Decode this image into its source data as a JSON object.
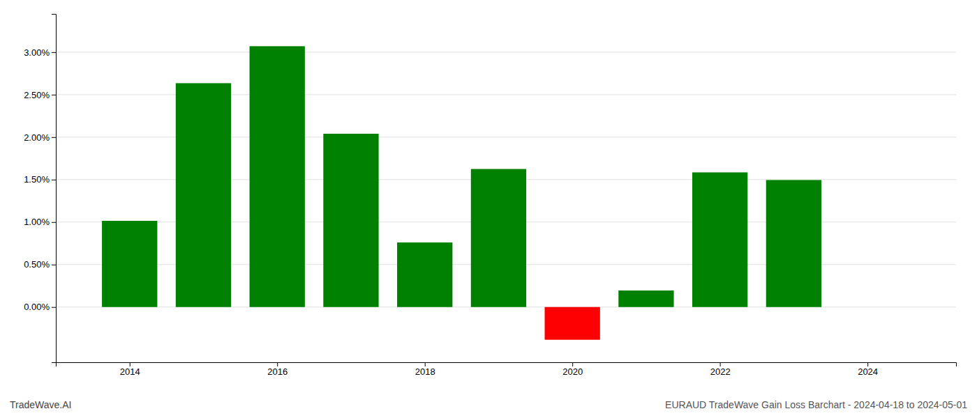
{
  "chart_data": {
    "type": "bar",
    "title": "EURAUD TradeWave Gain Loss Barchart - 2024-04-18 to 2024-05-01",
    "annotations": [
      "TradeWave.AI"
    ],
    "x": [
      2014,
      2015,
      2016,
      2017,
      2018,
      2019,
      2020,
      2021,
      2022,
      2023
    ],
    "values": [
      0.01015,
      0.02635,
      0.0307,
      0.0204,
      0.0076,
      0.01625,
      -0.00385,
      0.00195,
      0.01585,
      0.01495
    ],
    "colors": [
      "#008000",
      "#008000",
      "#008000",
      "#008000",
      "#008000",
      "#008000",
      "#ff0000",
      "#008000",
      "#008000",
      "#008000"
    ],
    "xlim": [
      2013.0,
      2025.2
    ],
    "xticks": [
      2014,
      2016,
      2018,
      2020,
      2022,
      2024
    ],
    "ylim": [
      -0.0065,
      0.0345
    ],
    "yticks": [
      {
        "value": 0.0,
        "label": "0.00%"
      },
      {
        "value": 0.005,
        "label": "0.50%"
      },
      {
        "value": 0.01,
        "label": "1.00%"
      },
      {
        "value": 0.015,
        "label": "1.50%"
      },
      {
        "value": 0.02,
        "label": "2.00%"
      },
      {
        "value": 0.025,
        "label": "2.50%"
      },
      {
        "value": 0.03,
        "label": "3.00%"
      }
    ],
    "grid": true
  }
}
